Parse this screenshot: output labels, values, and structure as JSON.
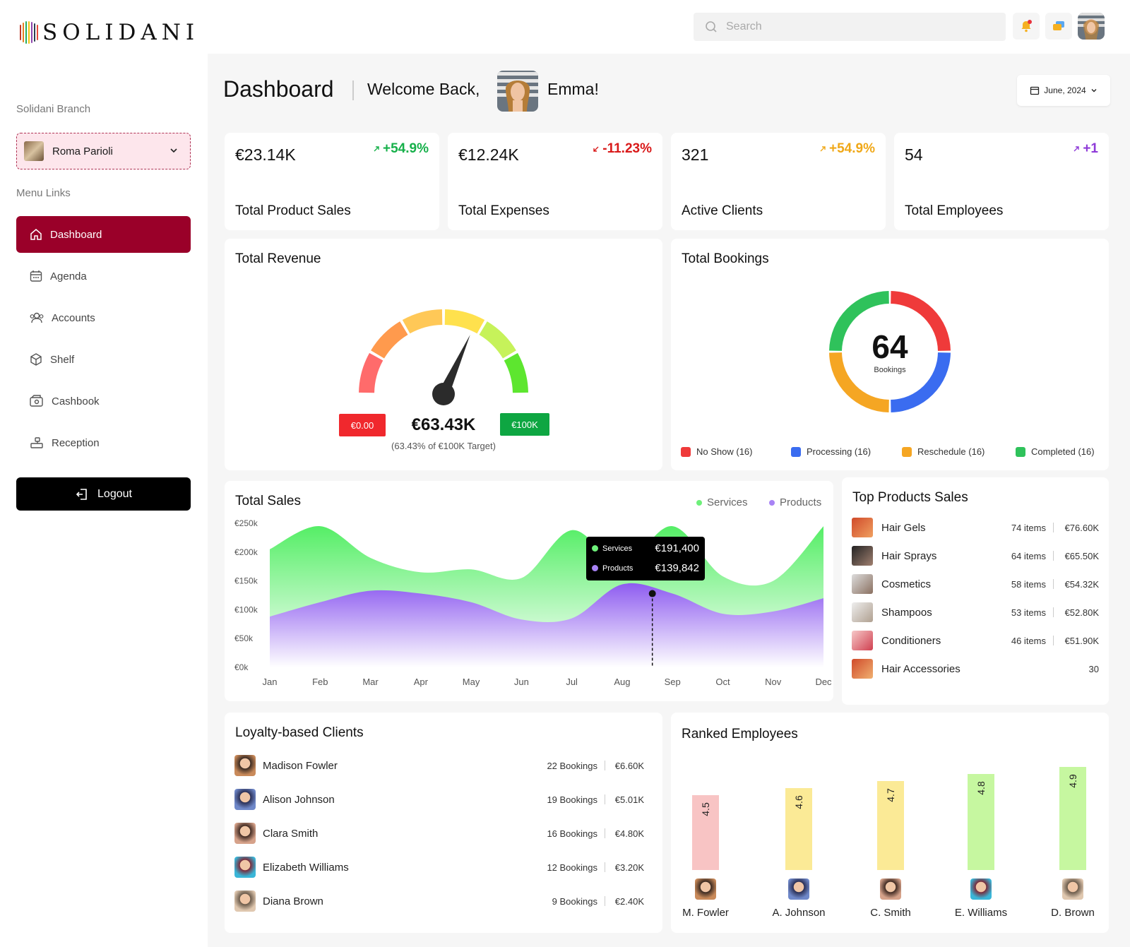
{
  "app": {
    "brand": "SOLIDANI"
  },
  "topbar": {
    "search_placeholder": "Search"
  },
  "sidebar": {
    "branch_label": "Solidani Branch",
    "branch_value": "Roma Parioli",
    "menu_label": "Menu Links",
    "items": [
      {
        "label": "Dashboard",
        "icon": "home-icon",
        "active": true
      },
      {
        "label": "Agenda",
        "icon": "calendar-icon",
        "active": false
      },
      {
        "label": "Accounts",
        "icon": "users-icon",
        "active": false
      },
      {
        "label": "Shelf",
        "icon": "box-icon",
        "active": false
      },
      {
        "label": "Cashbook",
        "icon": "wallet-icon",
        "active": false
      },
      {
        "label": "Reception",
        "icon": "desk-icon",
        "active": false
      }
    ],
    "logout_label": "Logout"
  },
  "header": {
    "title": "Dashboard",
    "welcome": "Welcome Back,",
    "name": "Emma!",
    "date": "June, 2024"
  },
  "stats": [
    {
      "value": "€23.14K",
      "label": "Total Product Sales",
      "change": "+54.9%",
      "color": "#16b04a",
      "arrow": "up"
    },
    {
      "value": "€12.24K",
      "label": "Total Expenses",
      "change": "-11.23%",
      "color": "#d91a1a",
      "arrow": "down"
    },
    {
      "value": "321",
      "label": "Active Clients",
      "change": "+54.9%",
      "color": "#f0a818",
      "arrow": "up"
    },
    {
      "value": "54",
      "label": "Total Employees",
      "change": "+1",
      "color": "#8e3ad8",
      "arrow": "up"
    }
  ],
  "revenue": {
    "title": "Total Revenue",
    "min_label": "€0.00",
    "max_label": "€100K",
    "value": "€63.43K",
    "sub": "(63.43% of €100K Target)",
    "percent": 63.43
  },
  "bookings": {
    "title": "Total Bookings",
    "total": "64",
    "total_label": "Bookings",
    "segments": [
      {
        "label": "No Show (16)",
        "value": 16,
        "color": "#ef3a3a"
      },
      {
        "label": "Processing (16)",
        "value": 16,
        "color": "#3a6cf0"
      },
      {
        "label": "Reschedule (16)",
        "value": 16,
        "color": "#f5a623"
      },
      {
        "label": "Completed (16)",
        "value": 16,
        "color": "#2fc25b"
      }
    ]
  },
  "sales": {
    "title": "Total Sales",
    "legend": [
      {
        "label": "Services",
        "color": "#6ef07a"
      },
      {
        "label": "Products",
        "color": "#a883f5"
      }
    ],
    "tooltip": {
      "services_label": "Services",
      "services_value": "€191,400",
      "products_label": "Products",
      "products_value": "€139,842"
    }
  },
  "chart_data": {
    "type": "area",
    "x": [
      "Jan",
      "Feb",
      "Mar",
      "Apr",
      "May",
      "Jun",
      "Jul",
      "Aug",
      "Sep",
      "Oct",
      "Nov",
      "Dec"
    ],
    "yticks": [
      "€250k",
      "€200k",
      "€150k",
      "€100k",
      "€50k",
      "€0k"
    ],
    "ylim": [
      0,
      250000
    ],
    "series": [
      {
        "name": "Services",
        "color": "#5cf06b",
        "values": [
          205000,
          245000,
          190000,
          165000,
          170000,
          155000,
          238000,
          178000,
          245000,
          158000,
          150000,
          245000
        ]
      },
      {
        "name": "Products",
        "color": "#9c6cf2",
        "values": [
          88000,
          113000,
          133000,
          128000,
          113000,
          83000,
          85000,
          144000,
          128000,
          93000,
          97000,
          120000
        ]
      }
    ]
  },
  "top_products": {
    "title": "Top Products Sales",
    "items": [
      {
        "name": "Hair Gels",
        "items": "74 items",
        "value": "€76.60K",
        "c1": "#d04a2a",
        "c2": "#f0a060"
      },
      {
        "name": "Hair Sprays",
        "items": "64 items",
        "value": "€65.50K",
        "c1": "#222",
        "c2": "#a08070"
      },
      {
        "name": "Cosmetics",
        "items": "58 items",
        "value": "€54.32K",
        "c1": "#ddd",
        "c2": "#8a7060"
      },
      {
        "name": "Shampoos",
        "items": "53 items",
        "value": "€52.80K",
        "c1": "#eee",
        "c2": "#b0a090"
      },
      {
        "name": "Conditioners",
        "items": "46 items",
        "value": "€51.90K",
        "c1": "#f6c8c8",
        "c2": "#d04050"
      },
      {
        "name": "Hair Accessories",
        "items": "",
        "value": "30",
        "c1": "#d04a2a",
        "c2": "#f0b070"
      }
    ]
  },
  "clients": {
    "title": "Loyalty-based Clients",
    "items": [
      {
        "name": "Madison Fowler",
        "bookings": "22 Bookings",
        "value": "€6.60K"
      },
      {
        "name": "Alison Johnson",
        "bookings": "19 Bookings",
        "value": "€5.01K"
      },
      {
        "name": "Clara Smith",
        "bookings": "16 Bookings",
        "value": "€4.80K"
      },
      {
        "name": "Elizabeth Williams",
        "bookings": "12 Bookings",
        "value": "€3.20K"
      },
      {
        "name": "Diana Brown",
        "bookings": "9 Bookings",
        "value": "€2.40K"
      }
    ]
  },
  "employees": {
    "title": "Ranked Employees",
    "items": [
      {
        "name": "M. Fowler",
        "score": 4.5,
        "score_label": "4.5",
        "color": "#f8c4c4"
      },
      {
        "name": "A. Johnson",
        "score": 4.6,
        "score_label": "4.6",
        "color": "#fbea96"
      },
      {
        "name": "C. Smith",
        "score": 4.7,
        "score_label": "4.7",
        "color": "#fbea96"
      },
      {
        "name": "E. Williams",
        "score": 4.8,
        "score_label": "4.8",
        "color": "#c6f7a0"
      },
      {
        "name": "D. Brown",
        "score": 4.9,
        "score_label": "4.9",
        "color": "#c6f7a0"
      }
    ]
  }
}
